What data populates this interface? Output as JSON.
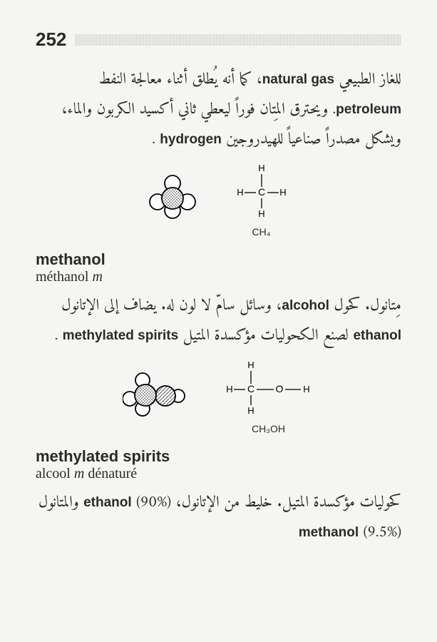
{
  "page_number": "252",
  "paragraph1_parts": [
    {
      "t": "ar",
      "v": "للغاز الطبيعي "
    },
    {
      "t": "latin",
      "v": "natural gas"
    },
    {
      "t": "ar",
      "v": "، كما أنه يُطلق أثناء معالجة النفط "
    },
    {
      "t": "latin",
      "v": "petroleum"
    },
    {
      "t": "ar",
      "v": ". ويحترق المِتان فوراً ليعطي ثاني أكسيد الكربون والماء، ويشكل مصدراً صناعياً للهيدروجين "
    },
    {
      "t": "latin",
      "v": "hydrogen"
    },
    {
      "t": "ar",
      "v": " ."
    }
  ],
  "methane_formula": "CH₄",
  "methanol_en": "methanol",
  "methanol_fr_main": "méthanol ",
  "methanol_fr_ital": "m",
  "paragraph2_parts": [
    {
      "t": "ar",
      "v": "مِتانول. كحول "
    },
    {
      "t": "latin",
      "v": "alcohol"
    },
    {
      "t": "ar",
      "v": "، وسائل سامّ لا لون له. يضاف إلى الإتانول "
    },
    {
      "t": "latin",
      "v": "ethanol"
    },
    {
      "t": "ar",
      "v": " لصنع الكحوليات مؤكسدة المتيل "
    },
    {
      "t": "latin",
      "v": "methylated spirits"
    },
    {
      "t": "ar",
      "v": " ."
    }
  ],
  "methanol_formula": "CH₃OH",
  "methspirits_en": "methylated spirits",
  "methspirits_fr_a": "alcool ",
  "methspirits_fr_ital": "m",
  "methspirits_fr_b": " dénaturé",
  "paragraph3_parts": [
    {
      "t": "ar",
      "v": "كحوليات مؤكسدة المتيل. خليط من الإتانول، "
    },
    {
      "t": "latin",
      "v": "ethanol"
    },
    {
      "t": "ar",
      "v": " (90%) والمتانول "
    },
    {
      "t": "latin",
      "v": "methanol"
    },
    {
      "t": "ar",
      "v": " (9.5%)"
    }
  ],
  "colors": {
    "text": "#2a2a2a",
    "bg": "#f5f5f3",
    "headerbar": "#bbbbbb"
  }
}
